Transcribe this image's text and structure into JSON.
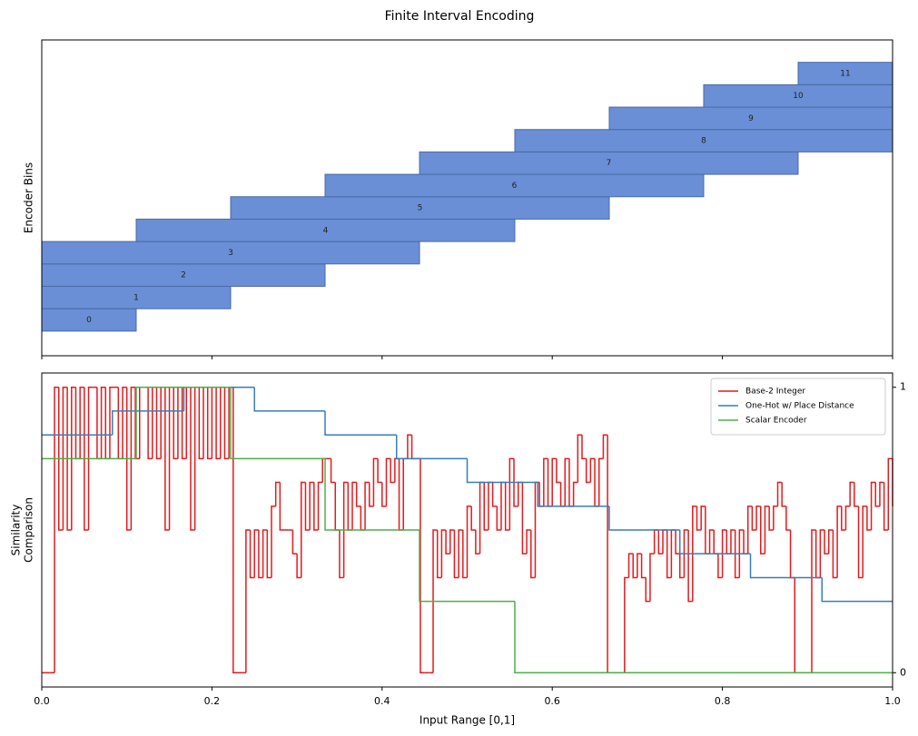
{
  "title": "Finite Interval Encoding",
  "chart_data": [
    {
      "type": "range-bar",
      "ylabel": "Encoder Bins",
      "categories": [
        "0",
        "1",
        "2",
        "3",
        "4",
        "5",
        "6",
        "7",
        "8",
        "9",
        "10",
        "11"
      ],
      "starts": [
        0,
        0,
        0,
        0,
        0.111,
        0.222,
        0.333,
        0.444,
        0.556,
        0.667,
        0.778,
        0.889
      ],
      "ends": [
        0.111,
        0.222,
        0.333,
        0.444,
        0.556,
        0.667,
        0.778,
        0.889,
        1,
        1,
        1,
        1
      ],
      "color": "#6a8fd6",
      "edgecolor": "#4a6aa5",
      "xlim": [
        0,
        1
      ],
      "xticks": [
        0,
        0.2,
        0.4,
        0.6,
        0.8,
        1
      ],
      "ylim": [
        -1.6,
        12.5
      ]
    },
    {
      "type": "step",
      "xlabel": "Input Range [0,1]",
      "ylabel": [
        "Similarity",
        "Comparison"
      ],
      "xlim": [
        0,
        1
      ],
      "ylim": [
        -0.05,
        1.05
      ],
      "xticks": [
        {
          "value": 0,
          "label": "0.0"
        },
        0.2,
        0.4,
        0.6,
        0.8,
        {
          "value": 1,
          "label": "1.0"
        }
      ],
      "yticks": [
        0,
        1
      ],
      "legend": "upper right",
      "series": [
        {
          "name": "Base-2 Integer",
          "color": "#e41a1c",
          "x": [
            0,
            0.005,
            0.01,
            0.015,
            0.02,
            0.025,
            0.03,
            0.035,
            0.04,
            0.045,
            0.05,
            0.055,
            0.06,
            0.065,
            0.07,
            0.075,
            0.08,
            0.085,
            0.09,
            0.095,
            0.1,
            0.105,
            0.11,
            0.115,
            0.12,
            0.125,
            0.13,
            0.135,
            0.14,
            0.145,
            0.15,
            0.155,
            0.16,
            0.165,
            0.17,
            0.175,
            0.18,
            0.185,
            0.19,
            0.195,
            0.2,
            0.205,
            0.21,
            0.215,
            0.22,
            0.225,
            0.23,
            0.235,
            0.24,
            0.245,
            0.25,
            0.255,
            0.26,
            0.265,
            0.27,
            0.275,
            0.28,
            0.285,
            0.29,
            0.295,
            0.3,
            0.305,
            0.31,
            0.315,
            0.32,
            0.325,
            0.33,
            0.335,
            0.34,
            0.345,
            0.35,
            0.355,
            0.36,
            0.365,
            0.37,
            0.375,
            0.38,
            0.385,
            0.39,
            0.395,
            0.4,
            0.405,
            0.41,
            0.415,
            0.42,
            0.425,
            0.43,
            0.435,
            0.44,
            0.445,
            0.45,
            0.455,
            0.46,
            0.465,
            0.47,
            0.475,
            0.48,
            0.485,
            0.49,
            0.495,
            0.5,
            0.505,
            0.51,
            0.515,
            0.52,
            0.525,
            0.53,
            0.535,
            0.54,
            0.545,
            0.55,
            0.555,
            0.56,
            0.565,
            0.57,
            0.575,
            0.58,
            0.585,
            0.59,
            0.595,
            0.6,
            0.605,
            0.61,
            0.615,
            0.62,
            0.625,
            0.63,
            0.635,
            0.64,
            0.645,
            0.65,
            0.655,
            0.66,
            0.665,
            0.67,
            0.675,
            0.68,
            0.685,
            0.69,
            0.695,
            0.7,
            0.705,
            0.71,
            0.715,
            0.72,
            0.725,
            0.73,
            0.735,
            0.74,
            0.745,
            0.75,
            0.755,
            0.76,
            0.765,
            0.77,
            0.775,
            0.78,
            0.785,
            0.79,
            0.795,
            0.8,
            0.805,
            0.81,
            0.815,
            0.82,
            0.825,
            0.83,
            0.835,
            0.84,
            0.845,
            0.85,
            0.855,
            0.86,
            0.865,
            0.87,
            0.875,
            0.88,
            0.885,
            0.89,
            0.895,
            0.9,
            0.905,
            0.91,
            0.915,
            0.92,
            0.925,
            0.93,
            0.935,
            0.94,
            0.945,
            0.95,
            0.955,
            0.96,
            0.965,
            0.97,
            0.975,
            0.98,
            0.985,
            0.99,
            0.995,
            1
          ],
          "values": [
            0,
            0,
            0,
            1,
            0.5,
            1,
            0.5,
            1,
            0.75,
            1,
            0.5,
            1,
            1,
            0.75,
            1,
            0.75,
            1,
            1,
            0.75,
            1,
            0.5,
            1,
            0.75,
            1,
            1,
            0.75,
            1,
            0.75,
            1,
            0.5,
            1,
            0.75,
            1,
            0.75,
            1,
            0.5,
            1,
            0.75,
            1,
            0.75,
            1,
            0.75,
            1,
            0.75,
            1,
            0,
            0,
            0,
            0.5,
            0.333,
            0.5,
            0.333,
            0.5,
            0.333,
            0.583,
            0.667,
            0.5,
            0.5,
            0.5,
            0.417,
            0.333,
            0.667,
            0.5,
            0.667,
            0.5,
            0.667,
            0.75,
            0.75,
            0.667,
            0.5,
            0.333,
            0.667,
            0.5,
            0.667,
            0.583,
            0.5,
            0.667,
            0.583,
            0.75,
            0.667,
            0.583,
            0.75,
            0.667,
            0.75,
            0.5,
            0.75,
            0.833,
            0.75,
            0.75,
            0,
            0,
            0,
            0.5,
            0.333,
            0.5,
            0.417,
            0.5,
            0.333,
            0.5,
            0.333,
            0.583,
            0.5,
            0.417,
            0.667,
            0.5,
            0.667,
            0.583,
            0.5,
            0.667,
            0.5,
            0.75,
            0.583,
            0.667,
            0.417,
            0.5,
            0.333,
            0.667,
            0.583,
            0.75,
            0.583,
            0.75,
            0.667,
            0.583,
            0.75,
            0.583,
            0.667,
            0.833,
            0.75,
            0.667,
            0.75,
            0.583,
            0.75,
            0.833,
            0,
            0,
            0,
            0,
            0.333,
            0.417,
            0.333,
            0.417,
            0.333,
            0.25,
            0.417,
            0.5,
            0.417,
            0.5,
            0.333,
            0.5,
            0.417,
            0.333,
            0.5,
            0.25,
            0.583,
            0.5,
            0.583,
            0.417,
            0.5,
            0.417,
            0.333,
            0.5,
            0.417,
            0.5,
            0.333,
            0.5,
            0.417,
            0.583,
            0.5,
            0.583,
            0.417,
            0.583,
            0.5,
            0.583,
            0.667,
            0.583,
            0.5,
            0.333,
            0,
            0,
            0,
            0,
            0.5,
            0.333,
            0.5,
            0.417,
            0.5,
            0.333,
            0.583,
            0.5,
            0.583,
            0.667,
            0.583,
            0.333,
            0.583,
            0.5,
            0.667,
            0.583,
            0.667,
            0.5,
            0.75,
            0.583
          ]
        },
        {
          "name": "One-Hot w/ Place Distance",
          "color": "#377eb8",
          "x": [
            0,
            0.083,
            0.167,
            0.25,
            0.333,
            0.417,
            0.5,
            0.583,
            0.667,
            0.75,
            0.833,
            0.917,
            1
          ],
          "values": [
            0.833,
            0.917,
            1,
            0.917,
            0.833,
            0.75,
            0.667,
            0.583,
            0.5,
            0.417,
            0.333,
            0.25,
            0.25
          ]
        },
        {
          "name": "Scalar Encoder",
          "color": "#4daf4a",
          "x": [
            0,
            0.111,
            0.222,
            0.333,
            0.444,
            0.556,
            1
          ],
          "values": [
            0.75,
            1,
            0.75,
            0.5,
            0.25,
            0,
            0
          ]
        }
      ]
    }
  ]
}
